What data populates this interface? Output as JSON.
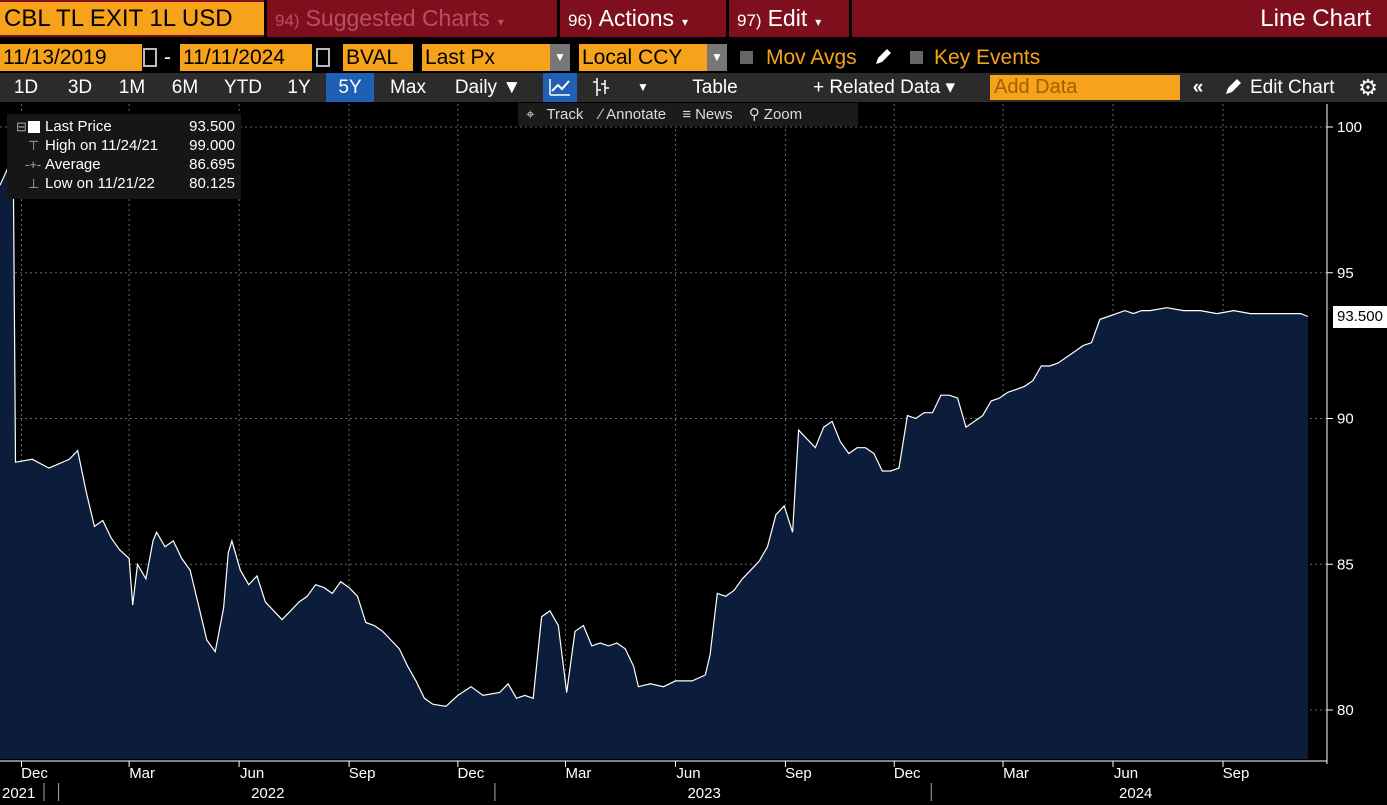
{
  "header": {
    "ticker": "CBL TL EXIT 1L USD",
    "tabs": [
      {
        "num": "94)",
        "label": "Suggested Charts",
        "dim": true
      },
      {
        "num": "96)",
        "label": "Actions"
      },
      {
        "num": "97)",
        "label": "Edit"
      }
    ],
    "view_title": "Line Chart"
  },
  "controls": {
    "start_date": "11/13/2019",
    "range_sep": "-",
    "end_date": "11/11/2024",
    "source": "BVAL",
    "field": "Last Px",
    "currency": "Local CCY",
    "mov_avgs": "Mov Avgs",
    "key_events": "Key Events"
  },
  "periods": [
    "1D",
    "3D",
    "1M",
    "6M",
    "YTD",
    "1Y",
    "5Y",
    "Max"
  ],
  "selected_period": "5Y",
  "frequency": "Daily ▼",
  "table_label": "Table",
  "related_data": "+ Related Data ▾",
  "add_data_placeholder": "Add Data",
  "edit_chart": "Edit Chart",
  "tools": {
    "track": "Track",
    "annotate": "Annotate",
    "news": "News",
    "zoom": "Zoom"
  },
  "legend": [
    {
      "name": "Last Price",
      "value": "93.500"
    },
    {
      "name": "High on 11/24/21",
      "value": "99.000"
    },
    {
      "name": "Average",
      "value": "86.695"
    },
    {
      "name": "Low on 11/21/22",
      "value": "80.125"
    }
  ],
  "colors": {
    "accent": "#f7a21b",
    "header_red": "#7f0f1c",
    "area_fill": "#0b1d3a",
    "line": "#ffffff"
  },
  "chart_data": {
    "type": "area",
    "series": [
      {
        "name": "Last Price",
        "color": "#ffffff"
      }
    ],
    "ylim": [
      78,
      101.5
    ],
    "yticks": [
      80,
      85,
      90,
      95,
      100
    ],
    "last_value_label": "93.500",
    "x_tick_labels": [
      "Dec",
      "Mar",
      "Jun",
      "Sep",
      "Dec",
      "Mar",
      "Jun",
      "Sep",
      "Dec",
      "Mar",
      "Jun",
      "Sep"
    ],
    "year_labels": [
      "2021",
      "2022",
      "2023",
      "2024"
    ],
    "grid": true,
    "points": [
      [
        "2021-11-16",
        98.0
      ],
      [
        "2021-11-24",
        99.0
      ],
      [
        "2021-11-26",
        88.5
      ],
      [
        "2021-12-10",
        88.6
      ],
      [
        "2021-12-24",
        88.3
      ],
      [
        "2022-01-10",
        88.6
      ],
      [
        "2022-01-17",
        88.9
      ],
      [
        "2022-01-24",
        87.5
      ],
      [
        "2022-01-31",
        86.3
      ],
      [
        "2022-02-07",
        86.5
      ],
      [
        "2022-02-14",
        85.9
      ],
      [
        "2022-02-21",
        85.5
      ],
      [
        "2022-03-01",
        85.2
      ],
      [
        "2022-03-04",
        83.6
      ],
      [
        "2022-03-08",
        85.0
      ],
      [
        "2022-03-15",
        84.5
      ],
      [
        "2022-03-21",
        85.8
      ],
      [
        "2022-03-24",
        86.1
      ],
      [
        "2022-03-31",
        85.6
      ],
      [
        "2022-04-07",
        85.8
      ],
      [
        "2022-04-14",
        85.2
      ],
      [
        "2022-04-21",
        84.8
      ],
      [
        "2022-04-28",
        83.6
      ],
      [
        "2022-05-05",
        82.4
      ],
      [
        "2022-05-12",
        82.0
      ],
      [
        "2022-05-19",
        83.5
      ],
      [
        "2022-05-23",
        85.4
      ],
      [
        "2022-05-26",
        85.8
      ],
      [
        "2022-06-02",
        84.8
      ],
      [
        "2022-06-09",
        84.3
      ],
      [
        "2022-06-16",
        84.6
      ],
      [
        "2022-06-23",
        83.7
      ],
      [
        "2022-06-30",
        83.4
      ],
      [
        "2022-07-07",
        83.1
      ],
      [
        "2022-07-14",
        83.4
      ],
      [
        "2022-07-21",
        83.7
      ],
      [
        "2022-07-28",
        83.9
      ],
      [
        "2022-08-04",
        84.3
      ],
      [
        "2022-08-11",
        84.2
      ],
      [
        "2022-08-18",
        84.0
      ],
      [
        "2022-08-25",
        84.4
      ],
      [
        "2022-09-01",
        84.2
      ],
      [
        "2022-09-08",
        83.9
      ],
      [
        "2022-09-15",
        83.0
      ],
      [
        "2022-09-22",
        82.9
      ],
      [
        "2022-09-29",
        82.7
      ],
      [
        "2022-10-06",
        82.4
      ],
      [
        "2022-10-13",
        82.1
      ],
      [
        "2022-10-20",
        81.5
      ],
      [
        "2022-10-27",
        81.0
      ],
      [
        "2022-11-03",
        80.4
      ],
      [
        "2022-11-10",
        80.2
      ],
      [
        "2022-11-21",
        80.125
      ],
      [
        "2022-12-01",
        80.5
      ],
      [
        "2022-12-12",
        80.8
      ],
      [
        "2022-12-22",
        80.5
      ],
      [
        "2023-01-05",
        80.6
      ],
      [
        "2023-01-12",
        80.9
      ],
      [
        "2023-01-19",
        80.4
      ],
      [
        "2023-01-26",
        80.5
      ],
      [
        "2023-02-02",
        80.4
      ],
      [
        "2023-02-09",
        83.2
      ],
      [
        "2023-02-16",
        83.4
      ],
      [
        "2023-02-23",
        82.9
      ],
      [
        "2023-03-02",
        80.6
      ],
      [
        "2023-03-09",
        82.7
      ],
      [
        "2023-03-16",
        82.9
      ],
      [
        "2023-03-23",
        82.2
      ],
      [
        "2023-03-30",
        82.3
      ],
      [
        "2023-04-06",
        82.2
      ],
      [
        "2023-04-13",
        82.3
      ],
      [
        "2023-04-20",
        82.1
      ],
      [
        "2023-04-27",
        81.5
      ],
      [
        "2023-05-01",
        80.8
      ],
      [
        "2023-05-11",
        80.9
      ],
      [
        "2023-05-22",
        80.8
      ],
      [
        "2023-06-01",
        81.0
      ],
      [
        "2023-06-15",
        81.0
      ],
      [
        "2023-06-26",
        81.2
      ],
      [
        "2023-06-30",
        81.9
      ],
      [
        "2023-07-06",
        84.0
      ],
      [
        "2023-07-13",
        83.9
      ],
      [
        "2023-07-20",
        84.1
      ],
      [
        "2023-07-27",
        84.5
      ],
      [
        "2023-08-03",
        84.8
      ],
      [
        "2023-08-10",
        85.1
      ],
      [
        "2023-08-17",
        85.6
      ],
      [
        "2023-08-24",
        86.7
      ],
      [
        "2023-08-31",
        87.0
      ],
      [
        "2023-09-07",
        86.1
      ],
      [
        "2023-09-12",
        89.6
      ],
      [
        "2023-09-19",
        89.3
      ],
      [
        "2023-09-26",
        89.0
      ],
      [
        "2023-10-03",
        89.7
      ],
      [
        "2023-10-10",
        89.9
      ],
      [
        "2023-10-17",
        89.2
      ],
      [
        "2023-10-24",
        88.8
      ],
      [
        "2023-10-31",
        89.0
      ],
      [
        "2023-11-07",
        89.0
      ],
      [
        "2023-11-14",
        88.8
      ],
      [
        "2023-11-21",
        88.2
      ],
      [
        "2023-11-28",
        88.2
      ],
      [
        "2023-12-05",
        88.3
      ],
      [
        "2023-12-12",
        90.1
      ],
      [
        "2023-12-19",
        90.0
      ],
      [
        "2023-12-26",
        90.2
      ],
      [
        "2024-01-02",
        90.2
      ],
      [
        "2024-01-09",
        90.8
      ],
      [
        "2024-01-16",
        90.8
      ],
      [
        "2024-01-23",
        90.7
      ],
      [
        "2024-01-30",
        89.7
      ],
      [
        "2024-02-06",
        89.9
      ],
      [
        "2024-02-13",
        90.1
      ],
      [
        "2024-02-20",
        90.6
      ],
      [
        "2024-02-27",
        90.7
      ],
      [
        "2024-03-05",
        90.9
      ],
      [
        "2024-03-12",
        91.0
      ],
      [
        "2024-03-19",
        91.1
      ],
      [
        "2024-03-26",
        91.3
      ],
      [
        "2024-04-02",
        91.8
      ],
      [
        "2024-04-09",
        91.8
      ],
      [
        "2024-04-16",
        91.9
      ],
      [
        "2024-04-23",
        92.1
      ],
      [
        "2024-04-30",
        92.3
      ],
      [
        "2024-05-07",
        92.5
      ],
      [
        "2024-05-14",
        92.6
      ],
      [
        "2024-05-21",
        93.4
      ],
      [
        "2024-05-28",
        93.5
      ],
      [
        "2024-06-04",
        93.6
      ],
      [
        "2024-06-11",
        93.7
      ],
      [
        "2024-06-18",
        93.6
      ],
      [
        "2024-06-25",
        93.7
      ],
      [
        "2024-07-02",
        93.7
      ],
      [
        "2024-07-16",
        93.8
      ],
      [
        "2024-07-30",
        93.7
      ],
      [
        "2024-08-13",
        93.7
      ],
      [
        "2024-08-27",
        93.6
      ],
      [
        "2024-09-10",
        93.7
      ],
      [
        "2024-09-24",
        93.6
      ],
      [
        "2024-10-08",
        93.6
      ],
      [
        "2024-10-22",
        93.6
      ],
      [
        "2024-11-05",
        93.6
      ],
      [
        "2024-11-11",
        93.5
      ]
    ]
  }
}
